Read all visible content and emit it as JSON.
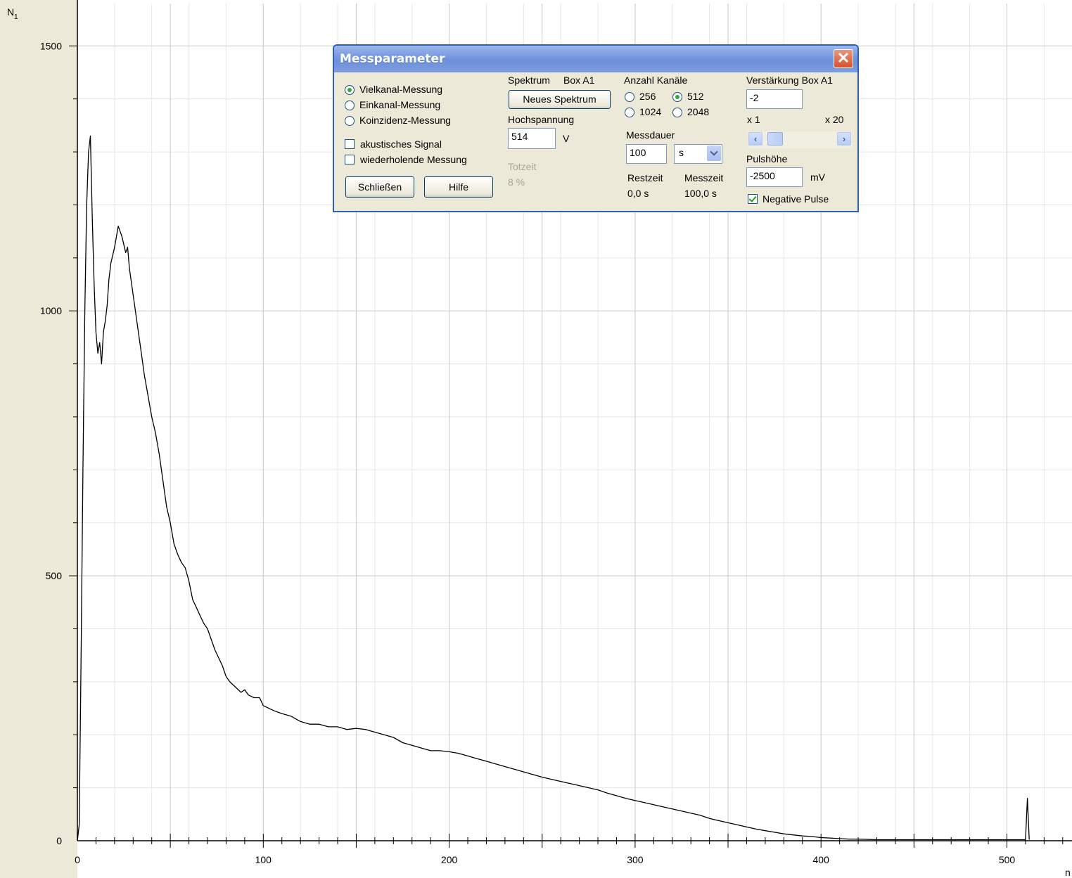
{
  "chart_data": {
    "type": "line",
    "y_axis_label": "N",
    "y_axis_label_subscript": "1",
    "x_axis_label": "n",
    "xlim": [
      0,
      535
    ],
    "ylim": [
      0,
      1580
    ],
    "x_ticks": [
      0,
      100,
      200,
      300,
      400,
      500
    ],
    "y_ticks": [
      0,
      500,
      1000,
      1500
    ],
    "grid": true,
    "series": [
      {
        "x": [
          0,
          1,
          2,
          3,
          4,
          5,
          6,
          7,
          8,
          9,
          10,
          11,
          12,
          13,
          14,
          15,
          16,
          17,
          18,
          20,
          22,
          24,
          26,
          27,
          28,
          30,
          32,
          34,
          36,
          38,
          40,
          42,
          44,
          46,
          48,
          50,
          52,
          54,
          56,
          58,
          60,
          62,
          64,
          66,
          68,
          70,
          72,
          74,
          76,
          78,
          80,
          82,
          85,
          88,
          90,
          92,
          95,
          98,
          100,
          103,
          106,
          110,
          115,
          120,
          125,
          130,
          135,
          140,
          145,
          150,
          155,
          160,
          165,
          170,
          175,
          180,
          185,
          190,
          195,
          200,
          205,
          210,
          215,
          220,
          225,
          230,
          235,
          240,
          245,
          250,
          255,
          260,
          265,
          270,
          275,
          280,
          285,
          290,
          295,
          300,
          305,
          310,
          315,
          320,
          325,
          330,
          335,
          340,
          345,
          350,
          355,
          360,
          365,
          370,
          375,
          380,
          385,
          390,
          395,
          400,
          405,
          410,
          415,
          420,
          430,
          440,
          450,
          460,
          470,
          480,
          490,
          500,
          505,
          510,
          511,
          512
        ],
        "y": [
          0,
          30,
          350,
          700,
          1000,
          1200,
          1300,
          1330,
          1180,
          1050,
          960,
          920,
          940,
          900,
          960,
          980,
          1010,
          1060,
          1090,
          1120,
          1160,
          1140,
          1110,
          1120,
          1080,
          1030,
          980,
          930,
          880,
          840,
          800,
          770,
          730,
          680,
          630,
          600,
          560,
          540,
          525,
          515,
          490,
          455,
          440,
          425,
          410,
          400,
          380,
          360,
          345,
          330,
          310,
          300,
          290,
          280,
          285,
          275,
          270,
          270,
          255,
          250,
          245,
          240,
          235,
          225,
          220,
          220,
          215,
          215,
          210,
          212,
          210,
          205,
          200,
          195,
          185,
          180,
          175,
          170,
          170,
          168,
          165,
          160,
          155,
          150,
          145,
          140,
          135,
          130,
          125,
          120,
          116,
          112,
          108,
          104,
          100,
          96,
          90,
          85,
          80,
          76,
          72,
          68,
          64,
          60,
          56,
          52,
          48,
          42,
          38,
          34,
          30,
          26,
          22,
          19,
          16,
          13,
          11,
          9,
          8,
          6,
          5,
          4,
          3,
          3,
          2,
          2,
          2,
          2,
          2,
          2,
          2,
          2,
          2,
          2,
          80,
          2
        ]
      }
    ]
  },
  "dialog": {
    "title": "Messparameter",
    "mode_options": [
      "Vielkanal-Messung",
      "Einkanal-Messung",
      "Koinzidenz-Messung"
    ],
    "mode_selected": 0,
    "checkbox_acoustic": "akustisches Signal",
    "checkbox_repeat": "wiederholende Messung",
    "close_button": "Schließen",
    "help_button": "Hilfe",
    "spectrum_label": "Spektrum",
    "spectrum_box": "Box A1",
    "new_spectrum_button": "Neues Spektrum",
    "hv_label": "Hochspannung",
    "hv_value": "514",
    "hv_unit": "V",
    "deadtime_label": "Totzeit",
    "deadtime_value": "8 %",
    "channels_label": "Anzahl Kanäle",
    "channel_options": [
      "256",
      "512",
      "1024",
      "2048"
    ],
    "channel_selected": "512",
    "duration_label": "Messdauer",
    "duration_value": "100",
    "duration_unit": "s",
    "remaining_label": "Restzeit",
    "remaining_value": "0,0 s",
    "measure_label": "Messzeit",
    "measure_value": "100,0 s",
    "gain_label": "Verstärkung Box A1",
    "gain_value": "-2",
    "gain_min": "x 1",
    "gain_max": "x 20",
    "gain_slider_fraction": 0.06,
    "pulse_label": "Pulshöhe",
    "pulse_value": "-2500",
    "pulse_unit": "mV",
    "negative_pulse_label": "Negative Pulse",
    "negative_pulse_checked": true
  }
}
